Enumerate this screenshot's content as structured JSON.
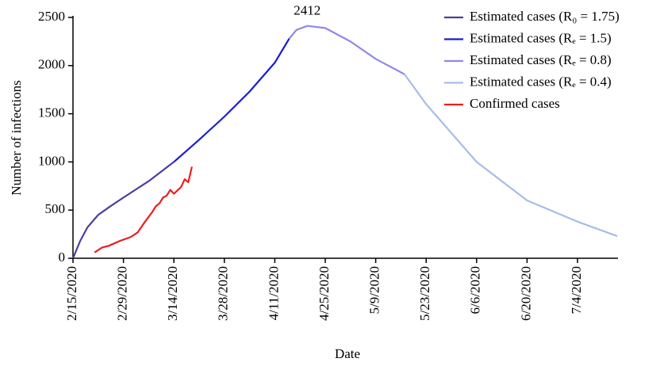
{
  "chart_data": {
    "type": "line",
    "annotation": "2412",
    "x_label": "Date",
    "y_label": "Number of infections",
    "xlim": [
      "2/15/2020",
      "7/15/2020"
    ],
    "xticks": [
      "2/15/2020",
      "2/29/2020",
      "3/14/2020",
      "3/28/2020",
      "4/11/2020",
      "4/25/2020",
      "5/9/2020",
      "5/23/2020",
      "6/6/2020",
      "6/20/2020",
      "7/4/2020"
    ],
    "ylim": [
      0,
      2500
    ],
    "yticks": [
      0,
      500,
      1000,
      1500,
      2000,
      2500
    ],
    "legend": "upper right",
    "series": [
      {
        "name": "Estimated cases (R₀ = 1.75)",
        "color": "#4a3f9c",
        "x": [
          "2/15/2020",
          "2/17/2020",
          "2/19/2020",
          "2/22/2020",
          "2/25/2020",
          "2/29/2020",
          "3/7/2020",
          "3/14/2020"
        ],
        "values": [
          0,
          180,
          320,
          450,
          530,
          630,
          800,
          1000
        ]
      },
      {
        "name": "Estimated cases (Rₑ = 1.5)",
        "color": "#1c1cd6",
        "x": [
          "3/14/2020",
          "3/21/2020",
          "3/28/2020",
          "4/4/2020",
          "4/11/2020",
          "4/15/2020"
        ],
        "values": [
          1000,
          1230,
          1470,
          1730,
          2030,
          2280
        ]
      },
      {
        "name": "Estimated cases (Rₑ = 0.8)",
        "color": "#9088ea",
        "x": [
          "4/15/2020",
          "4/17/2020",
          "4/20/2020",
          "4/25/2020",
          "5/2/2020",
          "5/9/2020",
          "5/17/2020"
        ],
        "values": [
          2280,
          2370,
          2412,
          2390,
          2250,
          2070,
          1910
        ]
      },
      {
        "name": "Estimated cases (Rₑ = 0.4)",
        "color": "#a8bce8",
        "x": [
          "5/17/2020",
          "5/23/2020",
          "6/6/2020",
          "6/20/2020",
          "7/4/2020",
          "7/15/2020"
        ],
        "values": [
          1910,
          1600,
          1000,
          600,
          380,
          230
        ]
      },
      {
        "name": "Confirmed cases",
        "color": "#ee1c1c",
        "x": [
          "2/21/2020",
          "2/23/2020",
          "2/25/2020",
          "2/28/2020",
          "3/2/2020",
          "3/4/2020",
          "3/6/2020",
          "3/8/2020",
          "3/9/2020",
          "3/10/2020",
          "3/11/2020",
          "3/12/2020",
          "3/13/2020",
          "3/14/2020",
          "3/16/2020",
          "3/17/2020",
          "3/18/2020",
          "3/19/2020"
        ],
        "values": [
          60,
          110,
          130,
          180,
          220,
          270,
          380,
          480,
          540,
          570,
          630,
          650,
          710,
          670,
          740,
          820,
          790,
          950
        ]
      }
    ]
  }
}
